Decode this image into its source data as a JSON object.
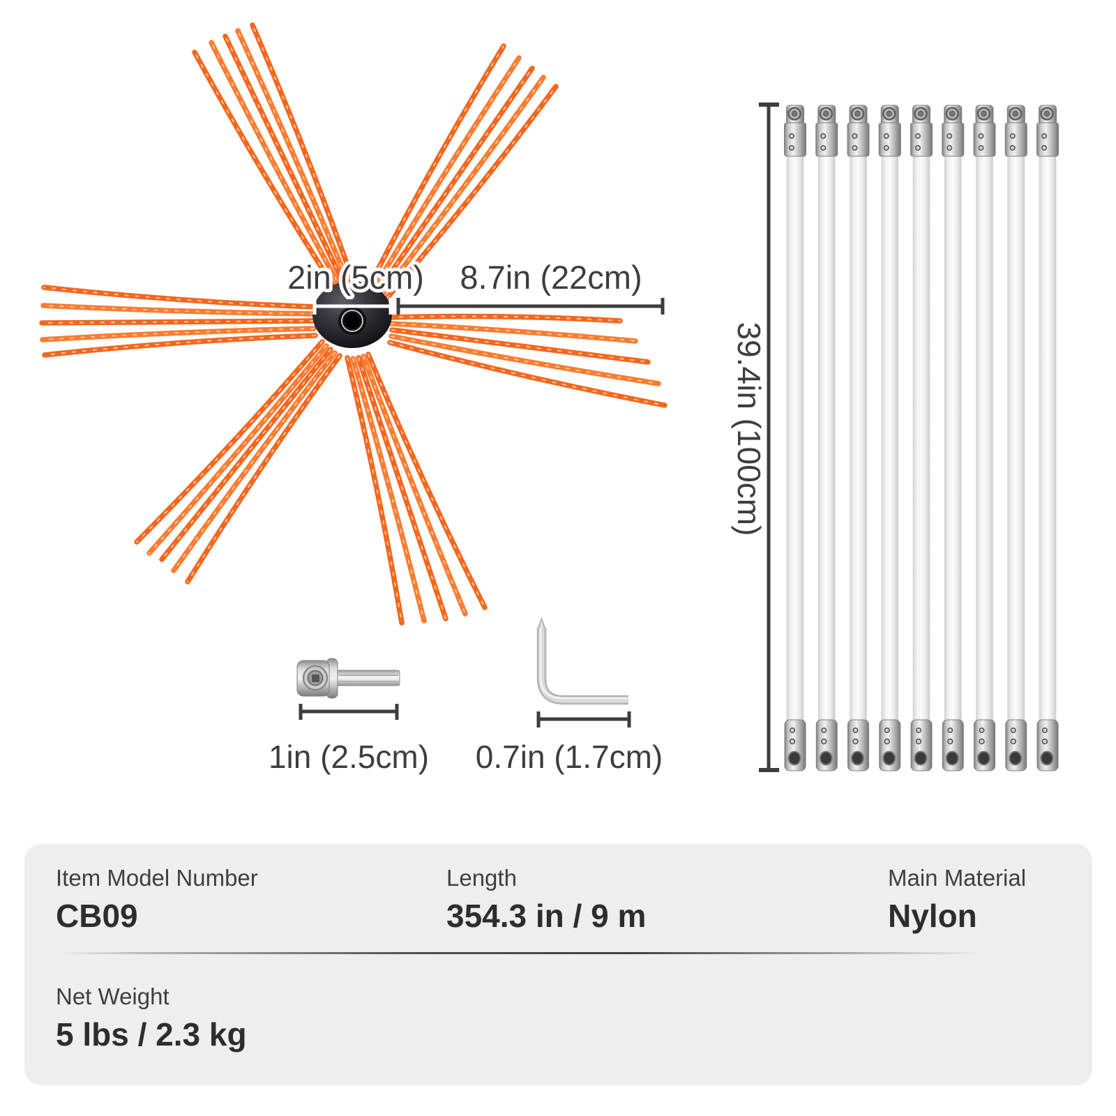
{
  "colors": {
    "accent_orange": "#f2671f",
    "accent_orange_alt": "#f87c31",
    "bristle_highlight": "#ffc59b",
    "dim_line": "#3d3d3d",
    "metal_edge": "#7d7d7d",
    "panel_bg": "#eeeeee",
    "hub_dark": "#141418"
  },
  "brush": {
    "hub_diameter_label": "2in (5cm)",
    "bristle_length_label": "8.7in (22cm)",
    "cluster_count": 6,
    "strands_per_cluster": 5
  },
  "rods": {
    "count": 9,
    "length_label": "39.4in (100cm)"
  },
  "adapter": {
    "size_label": "1in (2.5cm)"
  },
  "hex_key": {
    "size_label": "0.7in (1.7cm)"
  },
  "spec_panel": {
    "rows": [
      {
        "cells": [
          {
            "label": "Item Model Number",
            "value": "CB09"
          },
          {
            "label": "Length",
            "value": "354.3 in / 9 m"
          },
          {
            "label": "Main Material",
            "value": "Nylon"
          }
        ]
      },
      {
        "cells": [
          {
            "label": "Net Weight",
            "value": "5 lbs / 2.3 kg"
          }
        ]
      }
    ]
  }
}
